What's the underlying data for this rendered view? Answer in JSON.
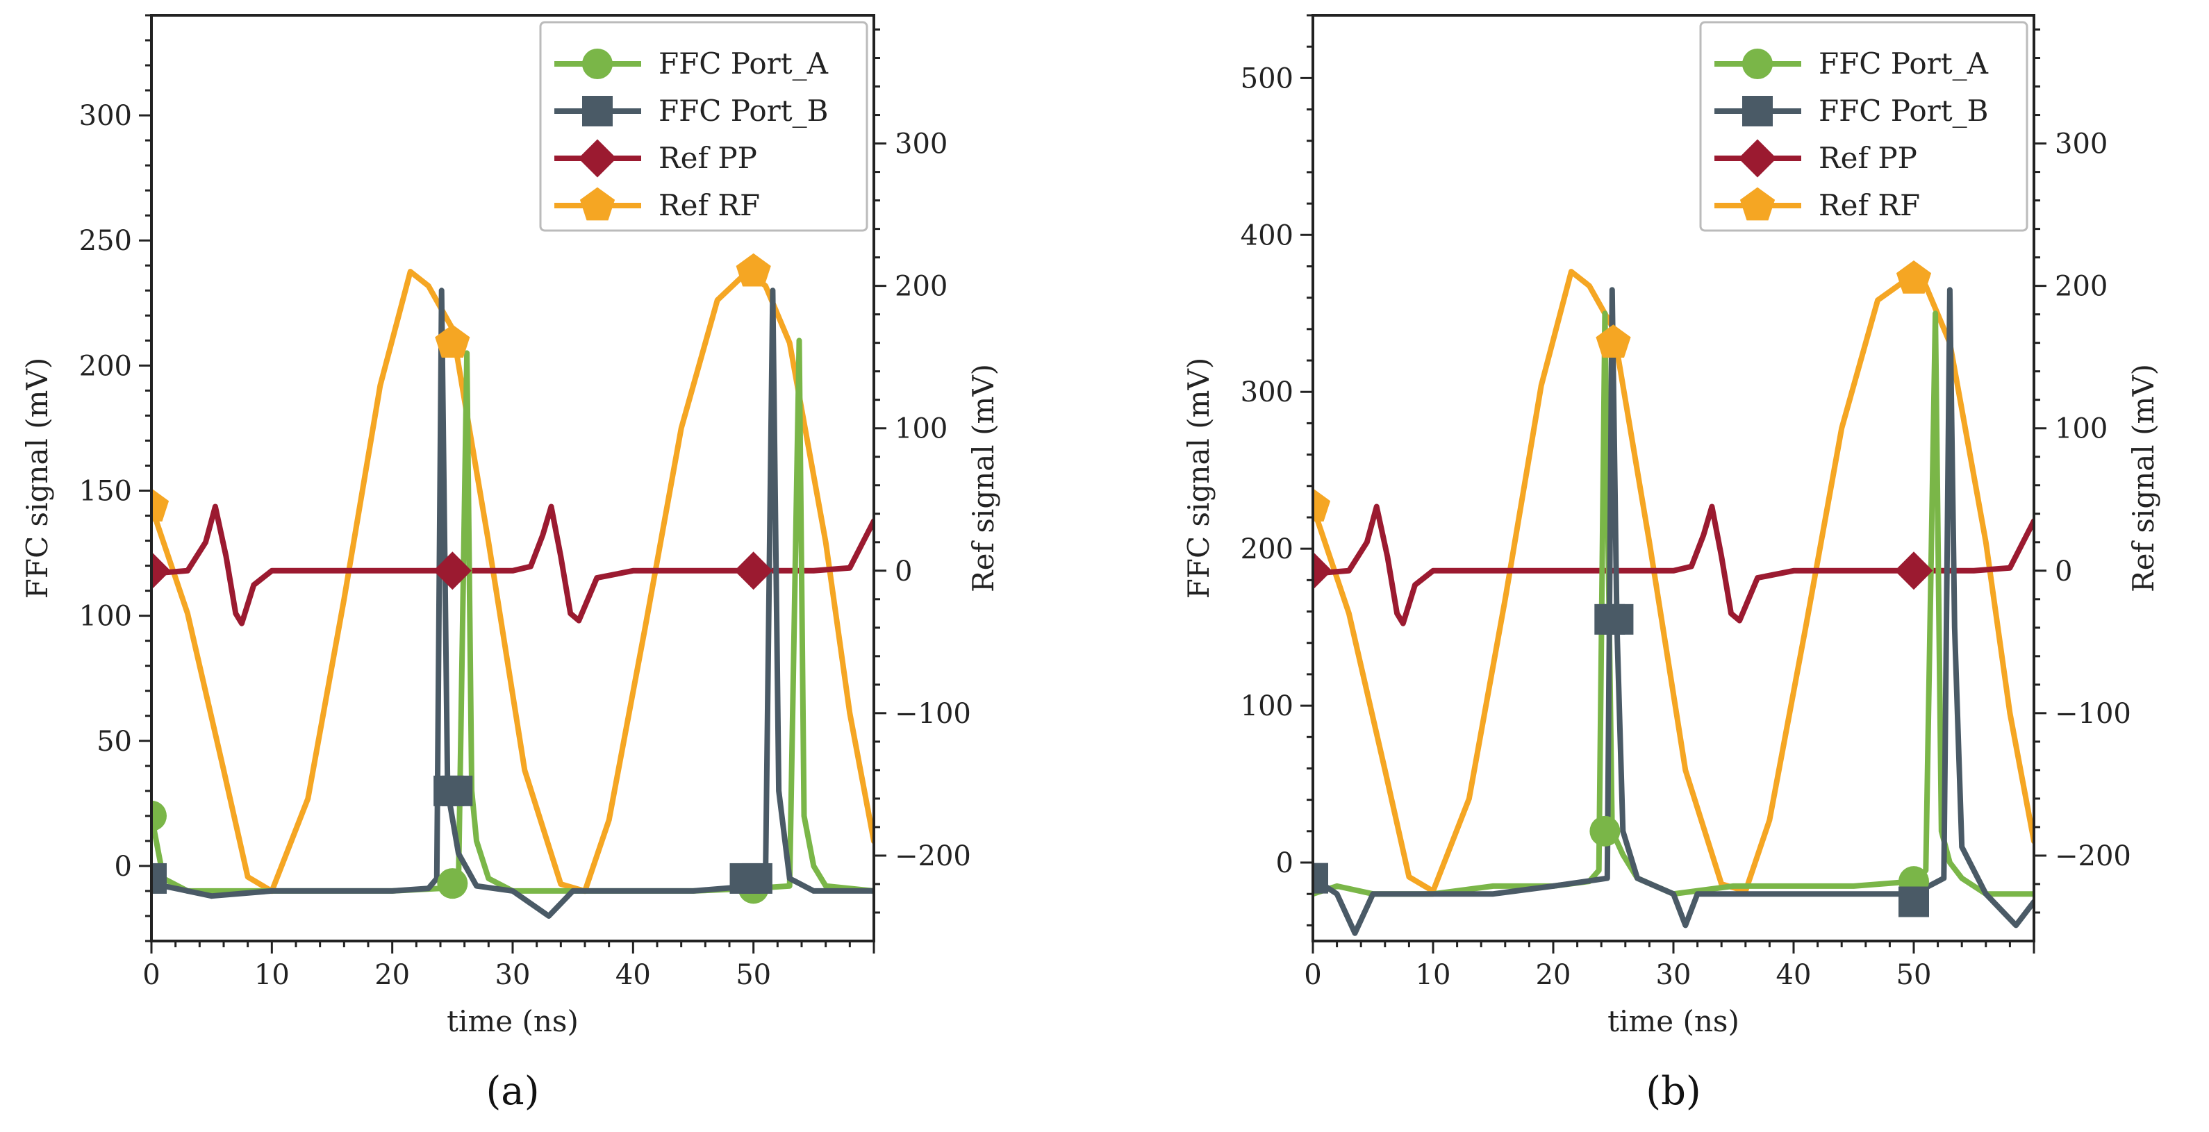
{
  "chart_data": [
    {
      "type": "line",
      "panel_label": "(a)",
      "xlabel": "time (ns)",
      "ylabel_left": "FFC signal (mV)",
      "ylabel_right": "Ref signal (mV)",
      "xlim": [
        0,
        60
      ],
      "ylim_left": [
        -30,
        340
      ],
      "ylim_right": [
        -260,
        390
      ],
      "x_ticks": [
        0,
        10,
        20,
        30,
        40,
        50
      ],
      "y_left_ticks": [
        0,
        50,
        100,
        150,
        200,
        250,
        300
      ],
      "y_right_ticks": [
        -200,
        -100,
        0,
        100,
        200,
        300
      ],
      "y_right_tick_labels": [
        "−200",
        "−100",
        "0",
        "100",
        "200",
        "300"
      ],
      "legend": [
        "FFC Port_A",
        "FFC Port_B",
        "Ref PP",
        "Ref RF"
      ],
      "legend_position": "top-right",
      "series": [
        {
          "name": "FFC Port_A",
          "axis": "left",
          "color": "#7ab648",
          "marker": "circle",
          "x": [
            0,
            1,
            3,
            5,
            10,
            15,
            20,
            24,
            25.5,
            26.2,
            26.6,
            27,
            28,
            30,
            35,
            40,
            45,
            50,
            53,
            53.8,
            54.2,
            55,
            56,
            60
          ],
          "y": [
            20,
            -5,
            -10,
            -10,
            -10,
            -10,
            -10,
            -9,
            -7,
            205,
            30,
            10,
            -5,
            -10,
            -10,
            -10,
            -10,
            -9,
            -8,
            210,
            20,
            0,
            -8,
            -10
          ]
        },
        {
          "name": "FFC Port_B",
          "axis": "left",
          "color": "#4a5a66",
          "marker": "square",
          "x": [
            0,
            1,
            3,
            5,
            10,
            15,
            20,
            23,
            23.7,
            24.1,
            24.6,
            25.5,
            27,
            30,
            33,
            35,
            40,
            45,
            50,
            51,
            51.6,
            52.1,
            53,
            55,
            60
          ],
          "y": [
            -5,
            -8,
            -10,
            -12,
            -10,
            -10,
            -10,
            -9,
            -5,
            230,
            30,
            5,
            -8,
            -10,
            -20,
            -10,
            -10,
            -10,
            -8,
            -5,
            230,
            30,
            -5,
            -10,
            -10
          ]
        },
        {
          "name": "Ref PP",
          "axis": "right",
          "color": "#9b1a30",
          "marker": "diamond",
          "x": [
            0,
            3,
            4.5,
            5.3,
            6.2,
            7,
            7.5,
            8.5,
            10,
            15,
            20,
            25,
            30,
            31.5,
            32.5,
            33.2,
            34,
            34.8,
            35.5,
            37,
            40,
            45,
            50,
            55,
            58,
            60
          ],
          "y": [
            -2,
            0,
            20,
            45,
            10,
            -30,
            -37,
            -10,
            0,
            0,
            0,
            0,
            0,
            3,
            25,
            45,
            10,
            -30,
            -35,
            -5,
            0,
            0,
            0,
            0,
            2,
            35
          ]
        },
        {
          "name": "Ref RF",
          "axis": "right",
          "color": "#f5a623",
          "marker": "pentagon",
          "x": [
            0,
            3,
            6,
            8,
            10,
            13,
            16,
            19,
            21.5,
            23,
            25,
            28,
            31,
            34,
            36,
            38,
            41,
            44,
            47,
            49.5,
            51,
            53,
            56,
            58,
            60
          ],
          "y": [
            45,
            -30,
            -140,
            -215,
            -225,
            -160,
            -20,
            130,
            210,
            200,
            170,
            20,
            -140,
            -220,
            -225,
            -175,
            -40,
            100,
            190,
            210,
            200,
            160,
            20,
            -100,
            -190
          ]
        }
      ],
      "markers": [
        {
          "series": "FFC Port_A",
          "x": [
            0,
            25,
            50
          ],
          "y": [
            20,
            -7,
            -9
          ]
        },
        {
          "series": "FFC Port_B",
          "x": [
            0,
            24.7,
            25.4,
            49.3,
            50.3
          ],
          "y": [
            -5,
            30,
            30,
            -5,
            -5
          ]
        },
        {
          "series": "Ref PP",
          "x": [
            0,
            25,
            50
          ],
          "y": [
            0,
            0,
            0
          ]
        },
        {
          "series": "Ref RF",
          "x": [
            0,
            25,
            50
          ],
          "y": [
            45,
            160,
            210
          ]
        }
      ]
    },
    {
      "type": "line",
      "panel_label": "(b)",
      "xlabel": "time (ns)",
      "ylabel_left": "FFC signal (mV)",
      "ylabel_right": "Ref signal (mV)",
      "xlim": [
        0,
        60
      ],
      "ylim_left": [
        -50,
        540
      ],
      "ylim_right": [
        -260,
        390
      ],
      "x_ticks": [
        0,
        10,
        20,
        30,
        40,
        50
      ],
      "y_left_ticks": [
        0,
        100,
        200,
        300,
        400,
        500
      ],
      "y_right_ticks": [
        -200,
        -100,
        0,
        100,
        200,
        300
      ],
      "y_right_tick_labels": [
        "−200",
        "−100",
        "0",
        "100",
        "200",
        "300"
      ],
      "legend": [
        "FFC Port_A",
        "FFC Port_B",
        "Ref PP",
        "Ref RF"
      ],
      "legend_position": "top-right",
      "series": [
        {
          "name": "FFC Port_A",
          "axis": "left",
          "color": "#7ab648",
          "marker": "circle",
          "x": [
            0,
            2,
            5,
            10,
            15,
            20,
            23,
            23.8,
            24.3,
            24.9,
            25.8,
            27,
            30,
            35,
            40,
            45,
            50,
            51,
            51.8,
            52.3,
            53,
            54,
            56,
            60
          ],
          "y": [
            -20,
            -15,
            -20,
            -20,
            -15,
            -15,
            -12,
            -5,
            350,
            20,
            5,
            -10,
            -20,
            -15,
            -15,
            -15,
            -12,
            -5,
            350,
            20,
            0,
            -10,
            -20,
            -20
          ]
        },
        {
          "name": "FFC Port_B",
          "axis": "left",
          "color": "#4a5a66",
          "marker": "square",
          "x": [
            0,
            2,
            3.5,
            5,
            10,
            15,
            20,
            24.5,
            24.9,
            25.3,
            25.8,
            27,
            30,
            31,
            32,
            35,
            40,
            45,
            50,
            52.5,
            53,
            53.4,
            54,
            56,
            58.5,
            60
          ],
          "y": [
            -10,
            -20,
            -45,
            -20,
            -20,
            -20,
            -15,
            -10,
            365,
            150,
            20,
            -10,
            -20,
            -40,
            -20,
            -20,
            -20,
            -20,
            -20,
            -10,
            365,
            150,
            10,
            -20,
            -40,
            -25
          ]
        },
        {
          "name": "Ref PP",
          "axis": "right",
          "color": "#9b1a30",
          "marker": "diamond",
          "x": [
            0,
            3,
            4.5,
            5.3,
            6.2,
            7,
            7.5,
            8.5,
            10,
            15,
            20,
            25,
            30,
            31.5,
            32.5,
            33.2,
            34,
            34.8,
            35.5,
            37,
            40,
            45,
            50,
            55,
            58,
            60
          ],
          "y": [
            -2,
            0,
            20,
            45,
            10,
            -30,
            -37,
            -10,
            0,
            0,
            0,
            0,
            0,
            3,
            25,
            45,
            10,
            -30,
            -35,
            -5,
            0,
            0,
            0,
            0,
            2,
            35
          ]
        },
        {
          "name": "Ref RF",
          "axis": "right",
          "color": "#f5a623",
          "marker": "pentagon",
          "x": [
            0,
            3,
            6,
            8,
            10,
            13,
            16,
            19,
            21.5,
            23,
            25,
            28,
            31,
            34,
            36,
            38,
            41,
            44,
            47,
            49.5,
            51,
            53,
            56,
            58,
            60
          ],
          "y": [
            45,
            -30,
            -140,
            -215,
            -225,
            -160,
            -20,
            130,
            210,
            200,
            170,
            20,
            -140,
            -220,
            -225,
            -175,
            -40,
            100,
            190,
            205,
            200,
            160,
            20,
            -100,
            -190
          ]
        }
      ],
      "markers": [
        {
          "series": "FFC Port_A",
          "x": [
            24.3,
            50
          ],
          "y": [
            20,
            -12
          ]
        },
        {
          "series": "FFC Port_B",
          "x": [
            0,
            24.7,
            25.4,
            50
          ],
          "y": [
            -10,
            155,
            155,
            -25
          ]
        },
        {
          "series": "Ref PP",
          "x": [
            0,
            50
          ],
          "y": [
            0,
            0
          ]
        },
        {
          "series": "Ref RF",
          "x": [
            0,
            25,
            50
          ],
          "y": [
            45,
            160,
            205
          ]
        }
      ]
    }
  ]
}
